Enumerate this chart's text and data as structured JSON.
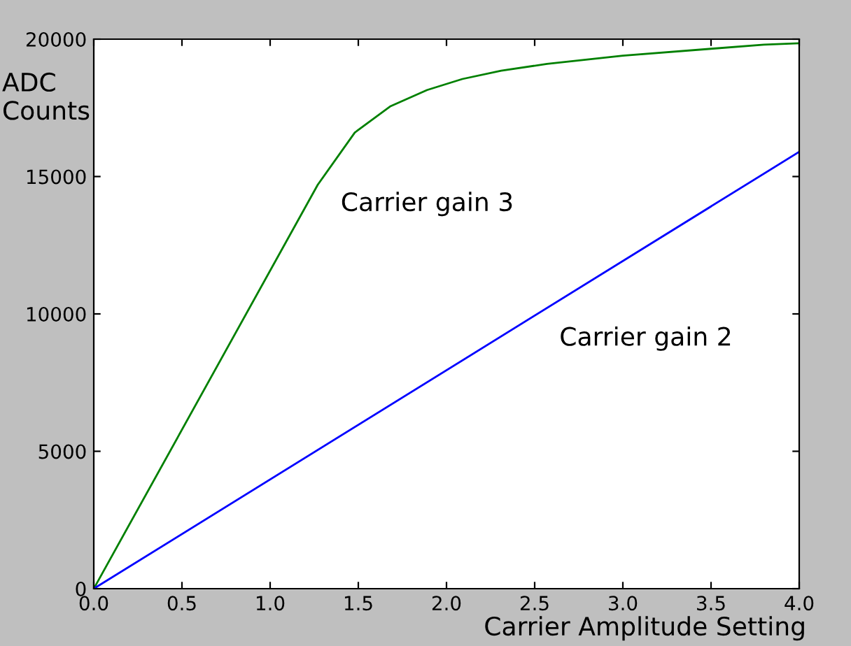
{
  "chart_data": {
    "type": "line",
    "xlabel": "Carrier Amplitude Setting",
    "ylabel": "ADC\nCounts",
    "series": [
      {
        "name": "Carrier gain 3",
        "color": "#008000",
        "x": [
          0,
          1.27,
          1.48,
          1.68,
          1.89,
          2.09,
          2.31,
          2.57,
          3.0,
          3.5,
          3.8,
          4.0
        ],
        "values": [
          0,
          14700,
          16600,
          17550,
          18150,
          18550,
          18850,
          19100,
          19400,
          19650,
          19800,
          19850
        ]
      },
      {
        "name": "Carrier gain 2",
        "color": "#0000ff",
        "x": [
          0,
          4.0
        ],
        "values": [
          0,
          15900
        ]
      }
    ],
    "xlim": [
      0,
      4
    ],
    "ylim": [
      0,
      20000
    ],
    "xticks": [
      {
        "value": 0,
        "label": "0.0"
      },
      {
        "value": 0.5,
        "label": "0.5"
      },
      {
        "value": 1,
        "label": "1.0"
      },
      {
        "value": 1.5,
        "label": "1.5"
      },
      {
        "value": 2,
        "label": "2.0"
      },
      {
        "value": 2.5,
        "label": "2.5"
      },
      {
        "value": 3,
        "label": "3.0"
      },
      {
        "value": 3.5,
        "label": "3.5"
      },
      {
        "value": 4,
        "label": "4.0"
      }
    ],
    "yticks": [
      0,
      5000,
      10000,
      15000,
      20000
    ],
    "grid": false,
    "legend": false
  }
}
